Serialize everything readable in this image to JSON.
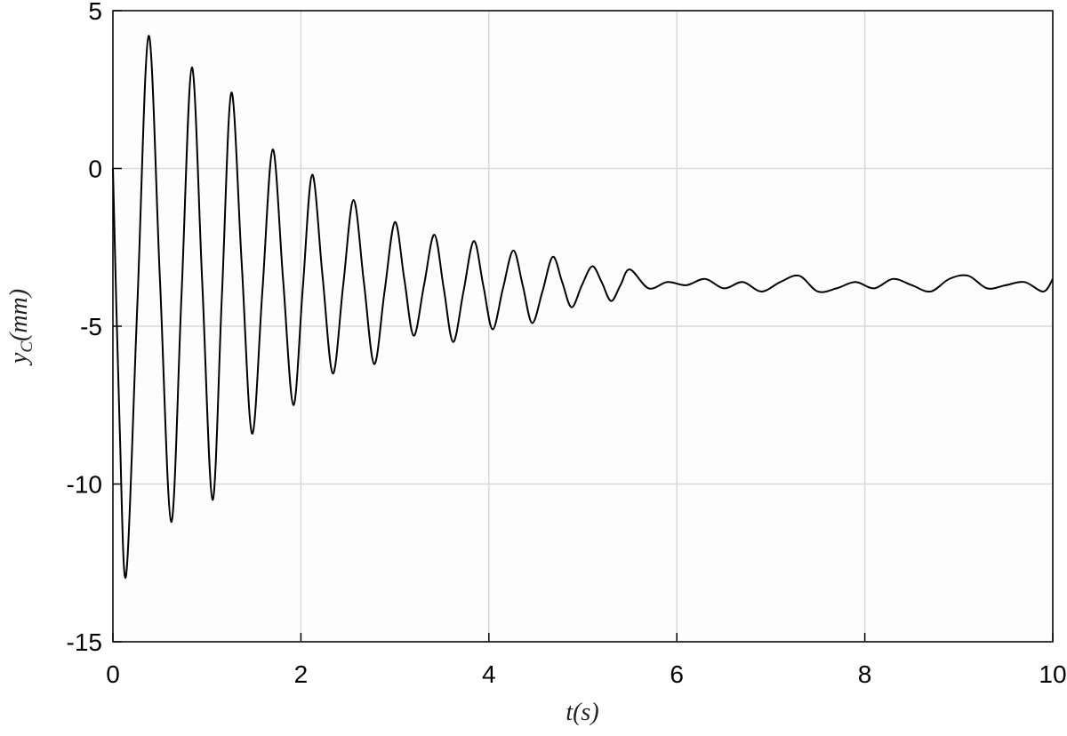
{
  "chart_data": {
    "type": "line",
    "x_label": "t(s)",
    "y_label": "y",
    "y_label_subscript": "C",
    "y_label_unit": "(mm)",
    "x": [
      0,
      0.07,
      0.14,
      0.26,
      0.38,
      0.5,
      0.62,
      0.73,
      0.84,
      0.95,
      1.06,
      1.16,
      1.26,
      1.37,
      1.48,
      1.59,
      1.7,
      1.81,
      1.92,
      2.02,
      2.12,
      2.23,
      2.34,
      2.45,
      2.56,
      2.67,
      2.78,
      2.89,
      3.0,
      3.1,
      3.2,
      3.31,
      3.42,
      3.52,
      3.62,
      3.73,
      3.84,
      3.94,
      4.04,
      4.15,
      4.26,
      4.36,
      4.46,
      4.57,
      4.68,
      4.78,
      4.88,
      4.99,
      5.1,
      5.2,
      5.3,
      5.4,
      5.5,
      5.7,
      5.9,
      6.1,
      6.3,
      6.5,
      6.7,
      6.9,
      7.1,
      7.3,
      7.5,
      7.7,
      7.9,
      8.1,
      8.3,
      8.5,
      8.7,
      8.9,
      9.1,
      9.3,
      9.5,
      9.7,
      9.9,
      10
    ],
    "series": [
      {
        "color": "#000000",
        "values": [
          0,
          -8,
          -12.9,
          -4.3,
          4.2,
          -3.5,
          -11.2,
          -4,
          3.2,
          -3.6,
          -10.5,
          -4,
          2.4,
          -3,
          -8.4,
          -3.9,
          0.6,
          -3.5,
          -7.5,
          -3.8,
          -0.2,
          -3.4,
          -6.5,
          -3.7,
          -1.0,
          -3.6,
          -6.2,
          -3.9,
          -1.7,
          -3.5,
          -5.3,
          -3.7,
          -2.1,
          -3.8,
          -5.5,
          -3.9,
          -2.3,
          -3.7,
          -5.1,
          -3.8,
          -2.6,
          -3.7,
          -4.9,
          -3.9,
          -2.8,
          -3.6,
          -4.4,
          -3.7,
          -3.1,
          -3.6,
          -4.2,
          -3.7,
          -3.2,
          -3.8,
          -3.6,
          -3.7,
          -3.5,
          -3.8,
          -3.6,
          -3.9,
          -3.6,
          -3.4,
          -3.9,
          -3.8,
          -3.6,
          -3.8,
          -3.5,
          -3.7,
          -3.9,
          -3.5,
          -3.4,
          -3.8,
          -3.7,
          -3.6,
          -3.9,
          -3.5
        ]
      }
    ],
    "xlim": [
      0,
      10
    ],
    "xticks": [
      0,
      2,
      4,
      6,
      8,
      10
    ],
    "ylim": [
      -15,
      5
    ],
    "yticks": [
      -15,
      -10,
      -5,
      0,
      5
    ],
    "grid": true
  }
}
